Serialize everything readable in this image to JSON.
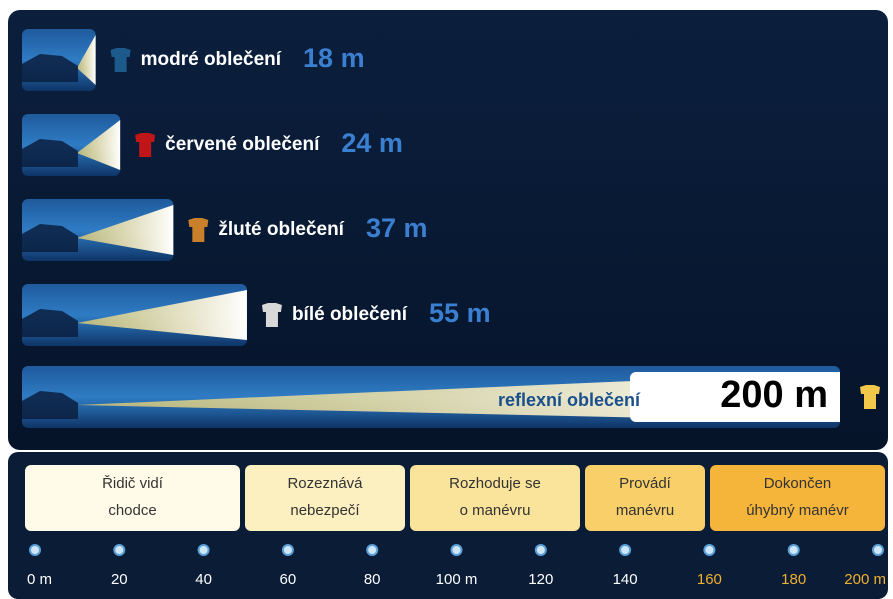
{
  "chart_data": {
    "type": "bar",
    "categories": [
      "modré oblečení",
      "červené oblečení",
      "žluté oblečení",
      "bílé oblečení",
      "reflexní oblečení"
    ],
    "values": [
      18,
      24,
      37,
      55,
      200
    ],
    "value_labels": [
      "18 m",
      "24 m",
      "37 m",
      "55 m",
      "200 m"
    ],
    "colors": [
      "#1d5a8c",
      "#c0161a",
      "#c8802a",
      "#d8d8d8",
      "#f2c84a"
    ],
    "stages": [
      [
        "Řidič vidí",
        "chodce"
      ],
      [
        "Rozeznává",
        "nebezpečí"
      ],
      [
        "Rozhoduje se",
        "o manévru"
      ],
      [
        "Provádí",
        "manévru"
      ],
      [
        "Dokončen",
        "úhybný manévr"
      ]
    ],
    "xlim": [
      0,
      200
    ],
    "xticks": [
      {
        "value": 0,
        "label": "0 m"
      },
      20,
      40,
      60,
      80,
      {
        "value": 100,
        "label": "100 m"
      },
      120,
      140,
      160,
      180,
      {
        "value": 200,
        "label": "200 m"
      }
    ]
  }
}
